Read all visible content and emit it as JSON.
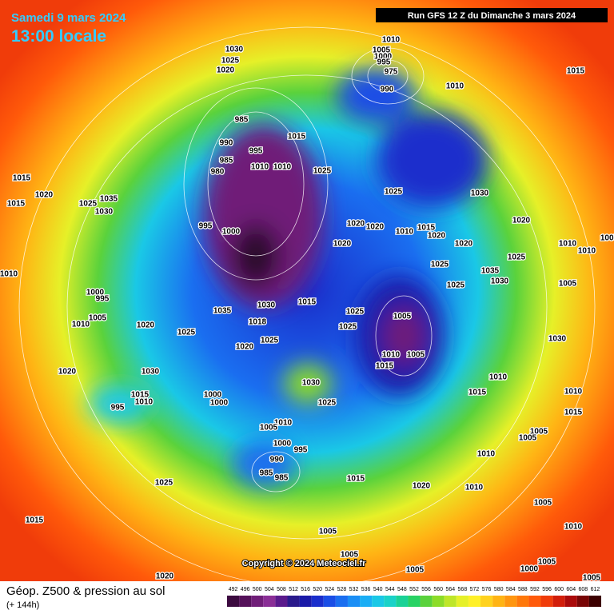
{
  "header": {
    "date": "Samedi 9 mars 2024",
    "time": "13:00 locale",
    "run": "Run GFS 12 Z du Dimanche 3 mars 2024"
  },
  "map": {
    "isobar_labels": [
      1030,
      1025,
      1020,
      1010,
      1005,
      1000,
      995,
      975,
      990,
      1010,
      1015,
      985,
      990,
      995,
      985,
      980,
      1010,
      1010,
      1015,
      1025,
      1015,
      1020,
      1035,
      1025,
      1030,
      1015,
      1025,
      1030,
      1020,
      1020,
      1020,
      1010,
      1015,
      1020,
      1020,
      1020,
      1010,
      1005,
      1010,
      1025,
      1025,
      1035,
      1030,
      1025,
      1005,
      995,
      1000,
      1010,
      1000,
      995,
      1005,
      1010,
      1020,
      1035,
      1030,
      1015,
      1025,
      1025,
      1005,
      1030,
      1018,
      1025,
      1025,
      1020,
      1010,
      1005,
      1015,
      1020,
      1030,
      1030,
      1010,
      1015,
      1000,
      1000,
      1025,
      1010,
      1015,
      995,
      1015,
      1010,
      1010,
      1005,
      1000,
      995,
      990,
      1005,
      1005,
      1010,
      985,
      985,
      1025,
      1015,
      1020,
      1010,
      1005,
      1015,
      1010,
      1005,
      1005,
      1000,
      1005,
      1005,
      1020,
      1005
    ],
    "copyright": "Copyright © 2024 Meteociel.fr"
  },
  "footer": {
    "title": "Géop. Z500 & pression au sol",
    "subtitle": "(+ 144h)"
  },
  "legend": {
    "labels": [
      492,
      496,
      500,
      504,
      508,
      512,
      516,
      520,
      524,
      528,
      532,
      536,
      540,
      544,
      548,
      552,
      556,
      560,
      564,
      568,
      572,
      576,
      580,
      584,
      588,
      592,
      596,
      600,
      604,
      608,
      612
    ],
    "colors": [
      "#3b0a3f",
      "#55115a",
      "#701e78",
      "#8a2e96",
      "#5a1a8c",
      "#2a1a8c",
      "#1a1aa8",
      "#1a2ecc",
      "#1a4ee6",
      "#1a6ef0",
      "#1a8ef5",
      "#1aaef5",
      "#1ac8e6",
      "#1ad2c8",
      "#1ad296",
      "#28d264",
      "#5ad23c",
      "#8cdc28",
      "#bee628",
      "#e6f028",
      "#fff028",
      "#ffd21e",
      "#ffb414",
      "#ff960f",
      "#ff780a",
      "#ff5a0a",
      "#f03c0a",
      "#d21e0a",
      "#aa0a0a",
      "#780505",
      "#3c0000"
    ]
  }
}
